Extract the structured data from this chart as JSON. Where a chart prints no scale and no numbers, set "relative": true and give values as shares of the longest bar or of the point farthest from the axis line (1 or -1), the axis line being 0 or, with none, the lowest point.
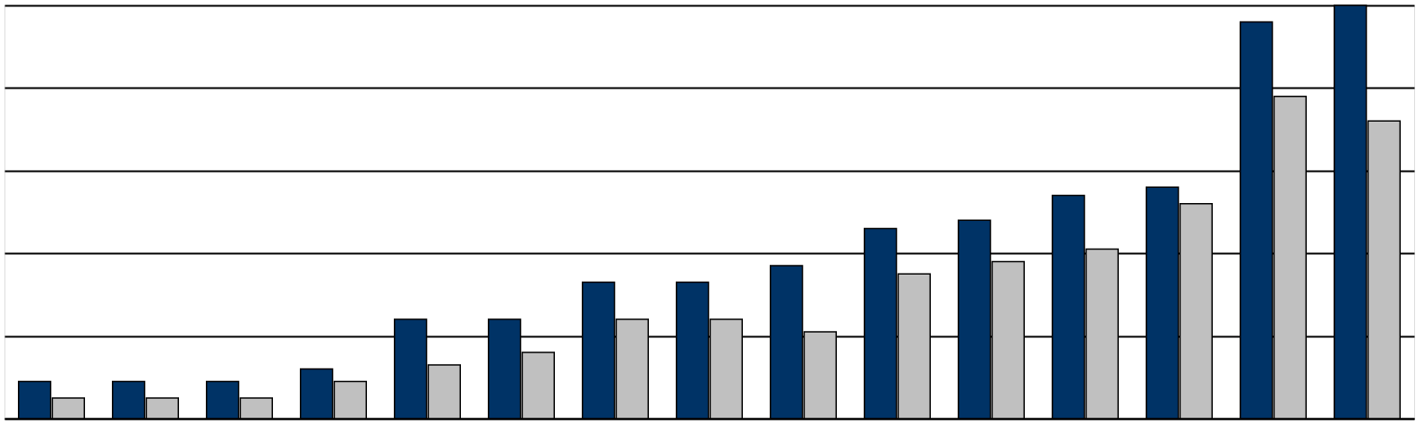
{
  "chart_data": {
    "type": "bar",
    "relative": true,
    "grid": true,
    "legend": false,
    "categories": [
      null,
      null,
      null,
      null,
      null,
      null,
      null,
      null,
      null,
      null,
      null,
      null,
      null,
      null,
      null
    ],
    "series": [
      {
        "color": "#003366",
        "values": [
          0.09,
          0.09,
          0.09,
          0.12,
          0.24,
          0.24,
          0.33,
          0.33,
          0.37,
          0.46,
          0.48,
          0.54,
          0.56,
          0.96,
          1
        ]
      },
      {
        "color": "#c0c0c0",
        "values": [
          0.05,
          0.05,
          0.05,
          0.09,
          0.13,
          0.16,
          0.24,
          0.24,
          0.21,
          0.35,
          0.38,
          0.41,
          0.52,
          0.78,
          0.72
        ]
      }
    ]
  }
}
